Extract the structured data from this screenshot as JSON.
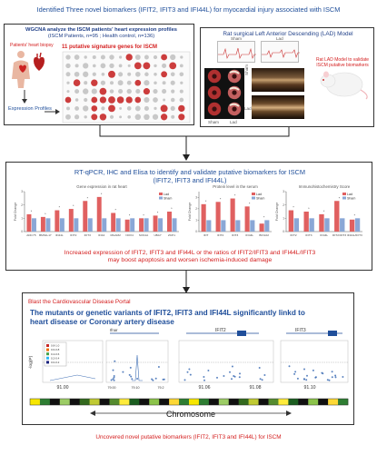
{
  "header": {
    "title": "Identified Three novel biomarkers (IFIT2, IFIT3 and IFI44L)  for myocardial injury associated with ISCM"
  },
  "panel_wgcna": {
    "title_line1": "WGCNA analyze the ISCM patients' heart expression profiles",
    "title_line2": "(ISCM Patients, n=95 ; Health control, n=136)",
    "biopsy_label": "Patients' heart biopsy",
    "genes_label": "11 putative signature genes for ISCM",
    "profiles_label": "Expression Profiles"
  },
  "panel_lad": {
    "title": "Rat  surgical Left Anterior Descending (LAD) Model",
    "sham_label": "Sham",
    "lad_label": "Lad",
    "sham_side": "Sham",
    "lad_side": "Lad",
    "model_note_line1": "Rat LAD Model to validate",
    "model_note_line2": "ISCM putative biomarkers"
  },
  "panel_validation": {
    "title_line1": "RT-qPCR, IHC and Elisa to identify and validate putative biomarkers for ISCM",
    "title_line2": "(IFIT2, IFIT3 and IFI44L)",
    "chart1_title": "Gene expression in rat heart",
    "chart2_title": "Protein level in the serum",
    "chart3_title": "Immunohistochemistry Score",
    "legend_lad": "Lad",
    "legend_sham": "Sham",
    "ylabel": "Fold Change",
    "conclusion_line1": "Increased expression of IFIT2, IFIT3 and IFI44L or the ratios of IFIT2/IFIT3 and IFI44L/IFIT3",
    "conclusion_line2": "may boost apoptosis and worsen ischemia-induced damage"
  },
  "panel_portal": {
    "heading": "Blast the Cardiovascular Disease Portal",
    "title_line1": "The mutants or genetic variants of IFIT2, IFIT3 and IFI44L significantly linkd to",
    "title_line2": "heart disease or Coronary artery disease",
    "ylabel": "-log(P)",
    "gene_ifit2": "IFIT2",
    "gene_ifit3": "IFIT3",
    "gene_left": "Ifnar",
    "pos_labels": [
      "91.00",
      "79.00",
      "79.10",
      "79.2",
      "91.06",
      "91.08",
      "91.10"
    ],
    "chromosome_label": "Chromosome",
    "legend": [
      "0.8-1.0",
      "0.6-0.8",
      "0.4-0.6",
      "0.2-0.4",
      "0.0-0.2"
    ]
  },
  "footer": {
    "text": "Uncovered novel putative biomarkers (IFIT2, IFIT3 and IFI44L) for ISCM"
  },
  "colors": {
    "accent_blue": "#1f4e9a",
    "accent_red": "#d42020",
    "bar_lad": "#e06060",
    "bar_sham": "#8aa7d6"
  },
  "chart_data": [
    {
      "type": "bar",
      "title": "Gene expression in rat heart",
      "ylabel": "Fold Change",
      "categories": [
        "ADCY5",
        "BMS1L17",
        "IFI44L",
        "IFIT2",
        "IFIT3",
        "IFI44",
        "MGAM2",
        "NOX4",
        "SCN1A",
        "UBA7",
        "ZCP1"
      ],
      "series": [
        {
          "name": "Lad",
          "values": [
            1.3,
            1.1,
            1.6,
            1.7,
            2.3,
            2.6,
            1.4,
            0.9,
            1.0,
            1.2,
            1.5
          ]
        },
        {
          "name": "Sham",
          "values": [
            1.0,
            1.0,
            1.0,
            1.0,
            1.0,
            1.0,
            1.0,
            1.0,
            1.0,
            1.0,
            1.0
          ]
        }
      ],
      "ylim": [
        0,
        3
      ]
    },
    {
      "type": "bar",
      "title": "Protein level in the serum",
      "ylabel": "Fold Change",
      "categories": [
        "IFIT",
        "IFIT2",
        "IFIT3",
        "IFI44L",
        "BIOL02"
      ],
      "series": [
        {
          "name": "Lad",
          "values": [
            2.4,
            2.6,
            2.9,
            2.2,
            0.7
          ]
        },
        {
          "name": "Sham",
          "values": [
            1.0,
            1.0,
            1.0,
            1.0,
            1.0
          ]
        }
      ],
      "ylim": [
        0,
        3.5
      ]
    },
    {
      "type": "bar",
      "title": "Immunohistochemistry Score",
      "ylabel": "Fold Change",
      "categories": [
        "IFIT2",
        "IFIT3",
        "IFI44L",
        "IFIT2/IFIT3",
        "IFI44L/IFIT3"
      ],
      "series": [
        {
          "name": "Lad",
          "values": [
            1.6,
            1.5,
            1.3,
            2.3,
            0.9
          ]
        },
        {
          "name": "Sham",
          "values": [
            1.0,
            1.0,
            1.0,
            1.0,
            1.0
          ]
        }
      ],
      "ylim": [
        0,
        3
      ]
    }
  ]
}
